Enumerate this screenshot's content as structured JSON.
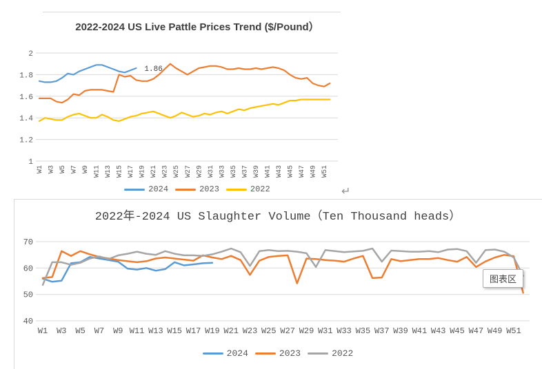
{
  "ui": {
    "tooltip_text": "图表区",
    "return_mark": "↵"
  },
  "colors": {
    "grid": "#D9D9D9",
    "axis_text": "#595959",
    "title_text": "#3F3F3F",
    "series_2024_blue": "#5B9BD5",
    "series_2023_orange": "#ED7D31",
    "series_2022_yellow": "#FFC000",
    "series_2022_gray": "#A5A5A5"
  },
  "chart_data": [
    {
      "type": "line",
      "title": "2022-2024 US Live Pattle Prices Trend ($/Pound）",
      "xlabel": "",
      "ylabel": "",
      "ylim": [
        1,
        2
      ],
      "y_ticks": [
        1,
        1.2,
        1.4,
        1.6,
        1.8,
        2
      ],
      "grid": true,
      "legend_position": "bottom",
      "x_unit": "week",
      "x_count": 52,
      "x_tick_labels": [
        "W1",
        "W3",
        "W5",
        "W7",
        "W9",
        "W11",
        "W13",
        "W15",
        "W17",
        "W19",
        "W21",
        "W23",
        "W25",
        "W27",
        "W29",
        "W31",
        "W33",
        "W35",
        "W37",
        "W39",
        "W41",
        "W43",
        "W45",
        "W47",
        "W49",
        "W51"
      ],
      "x_tick_rotated": true,
      "annotation": {
        "text": "1.86",
        "series": "2024",
        "week": 18,
        "value": 1.86
      },
      "series": [
        {
          "name": "2024",
          "color": "#5B9BD5",
          "start_week": 1,
          "values": [
            1.74,
            1.73,
            1.73,
            1.74,
            1.77,
            1.81,
            1.8,
            1.83,
            1.85,
            1.87,
            1.89,
            1.89,
            1.87,
            1.85,
            1.83,
            1.82,
            1.84,
            1.86
          ]
        },
        {
          "name": "2023",
          "color": "#ED7D31",
          "start_week": 1,
          "values": [
            1.58,
            1.58,
            1.58,
            1.55,
            1.54,
            1.57,
            1.62,
            1.61,
            1.65,
            1.66,
            1.66,
            1.66,
            1.65,
            1.64,
            1.8,
            1.78,
            1.79,
            1.75,
            1.74,
            1.74,
            1.76,
            1.8,
            1.85,
            1.9,
            1.86,
            1.83,
            1.8,
            1.83,
            1.86,
            1.87,
            1.88,
            1.88,
            1.87,
            1.85,
            1.85,
            1.86,
            1.85,
            1.85,
            1.86,
            1.85,
            1.86,
            1.87,
            1.86,
            1.84,
            1.8,
            1.77,
            1.76,
            1.77,
            1.72,
            1.7,
            1.69,
            1.72
          ]
        },
        {
          "name": "2022",
          "color": "#FFC000",
          "start_week": 1,
          "values": [
            1.37,
            1.4,
            1.39,
            1.38,
            1.38,
            1.41,
            1.43,
            1.44,
            1.42,
            1.4,
            1.4,
            1.43,
            1.41,
            1.38,
            1.37,
            1.39,
            1.41,
            1.42,
            1.44,
            1.45,
            1.46,
            1.44,
            1.42,
            1.4,
            1.42,
            1.45,
            1.43,
            1.41,
            1.42,
            1.44,
            1.43,
            1.45,
            1.46,
            1.44,
            1.46,
            1.48,
            1.47,
            1.49,
            1.5,
            1.51,
            1.52,
            1.53,
            1.52,
            1.54,
            1.56,
            1.56,
            1.57,
            1.57,
            1.57,
            1.57,
            1.57,
            1.57
          ]
        }
      ]
    },
    {
      "type": "line",
      "title": "2022年-2024 US Slaughter Volume（Ten Thousand heads）",
      "xlabel": "",
      "ylabel": "",
      "ylim": [
        40,
        70
      ],
      "y_ticks": [
        40,
        50,
        60,
        70
      ],
      "grid": true,
      "legend_position": "bottom",
      "x_unit": "week",
      "x_count": 52,
      "x_tick_labels": [
        "W1",
        "W3",
        "W5",
        "W7",
        "W9",
        "W11",
        "W13",
        "W15",
        "W17",
        "W19",
        "W21",
        "W23",
        "W25",
        "W27",
        "W29",
        "W31",
        "W33",
        "W35",
        "W37",
        "W39",
        "W41",
        "W43",
        "W45",
        "W47",
        "W49",
        "W51"
      ],
      "x_tick_rotated": false,
      "series": [
        {
          "name": "2024",
          "color": "#5B9BD5",
          "start_week": 1,
          "values": [
            56.0,
            54.8,
            55.2,
            61.8,
            62.2,
            64.2,
            63.6,
            63.0,
            62.4,
            59.8,
            59.4,
            60.0,
            59.0,
            59.6,
            62.2,
            61.0,
            61.4,
            61.8,
            62.0
          ]
        },
        {
          "name": "2023",
          "color": "#ED7D31",
          "start_week": 1,
          "values": [
            56.2,
            56.6,
            66.4,
            64.6,
            66.4,
            65.2,
            64.2,
            63.6,
            63.0,
            62.6,
            62.2,
            62.6,
            63.6,
            64.0,
            63.6,
            63.2,
            62.8,
            64.8,
            64.0,
            63.4,
            64.6,
            63.0,
            57.4,
            62.8,
            64.2,
            64.6,
            64.8,
            54.2,
            63.6,
            63.4,
            63.0,
            62.8,
            62.4,
            63.6,
            64.6,
            56.2,
            56.4,
            63.4,
            62.6,
            63.0,
            63.4,
            63.4,
            63.8,
            63.0,
            62.4,
            64.2,
            60.4,
            62.5,
            64.0,
            65.0,
            64.5,
            50.6
          ]
        },
        {
          "name": "2022",
          "color": "#A5A5A5",
          "start_week": 1,
          "values": [
            53.6,
            62.2,
            62.2,
            61.2,
            62.0,
            63.6,
            64.4,
            63.4,
            64.8,
            65.4,
            66.2,
            65.4,
            65.0,
            66.4,
            65.4,
            64.8,
            64.8,
            64.6,
            65.2,
            66.2,
            67.4,
            66.0,
            60.8,
            66.4,
            66.8,
            66.4,
            66.5,
            66.2,
            65.6,
            60.4,
            66.8,
            66.4,
            66.0,
            66.3,
            66.5,
            67.4,
            62.4,
            66.6,
            66.4,
            66.2,
            66.2,
            66.4,
            66.0,
            67.0,
            67.2,
            66.4,
            62.0,
            66.8,
            67.0,
            66.2,
            64.0,
            57.0
          ]
        }
      ]
    }
  ]
}
